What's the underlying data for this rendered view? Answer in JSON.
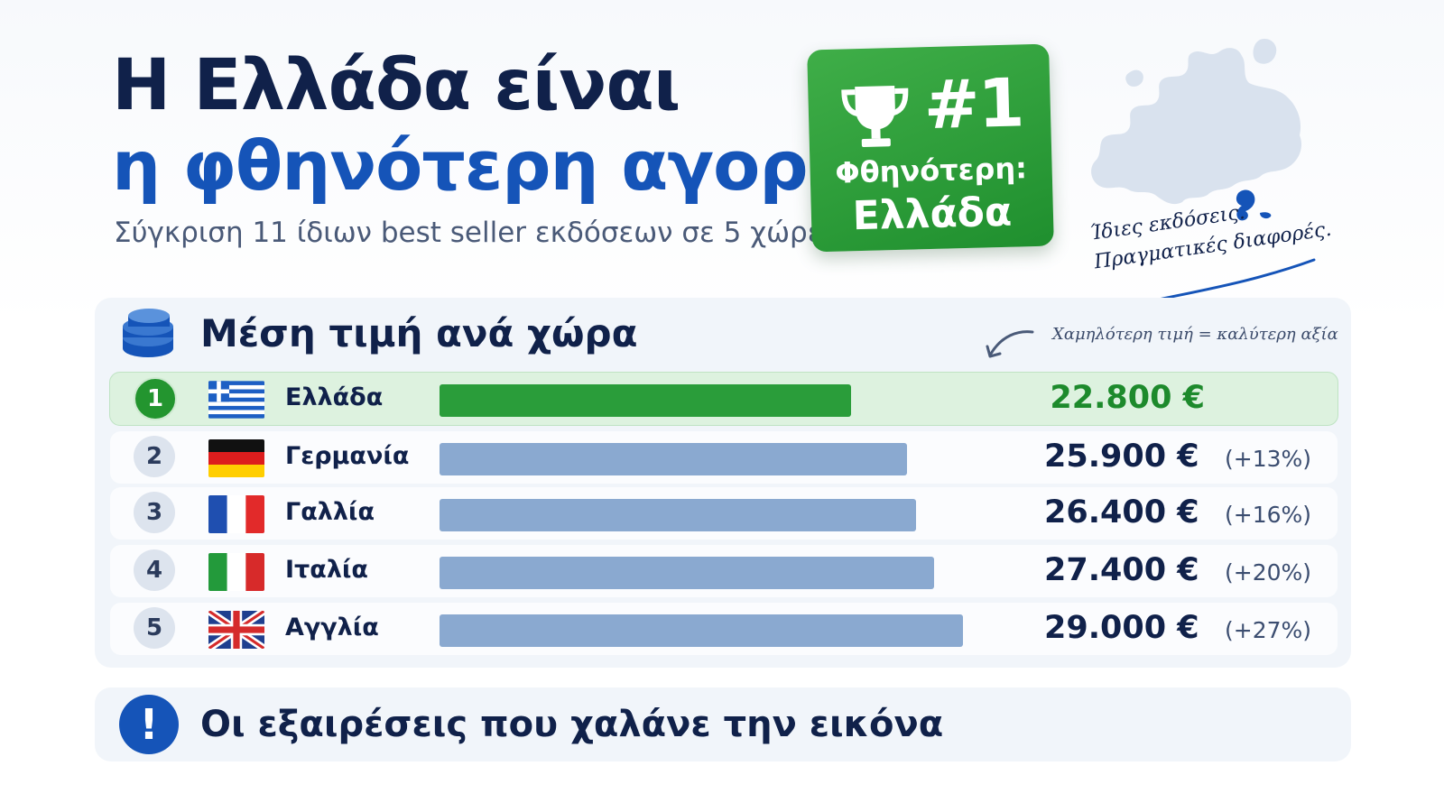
{
  "header": {
    "title_line1": "Η Ελλάδα είναι",
    "title_line2": "η φθηνότερη αγορά",
    "subtitle": "Σύγκριση 11 ίδιων best seller εκδόσεων σε 5 χώρες"
  },
  "badge": {
    "rank": "#1",
    "label_line1": "Φθηνότερη:",
    "label_line2": "Ελλάδα",
    "icon": "trophy-icon",
    "color": "#2a9d3a"
  },
  "tagline": {
    "line1": "Ίδιες εκδόσεις.",
    "line2": "Πραγματικές διαφορές."
  },
  "price_panel": {
    "title": "Μέση τιμή ανά χώρα",
    "icon": "coins-icon",
    "hint": "Χαμηλότερη τιμή = καλύτερη αξία"
  },
  "exceptions_panel": {
    "title": "Οι εξαιρέσεις που χαλάνε την εικόνα",
    "icon": "exclamation-icon"
  },
  "colors": {
    "best_bar": "#2a9d3a",
    "other_bar": "#8aa9d0",
    "title_dark": "#10214a",
    "title_blue": "#1554b8"
  },
  "chart_data": {
    "type": "bar",
    "orientation": "horizontal",
    "title": "Μέση τιμή ανά χώρα",
    "categories": [
      "Ελλάδα",
      "Γερμανία",
      "Γαλλία",
      "Ιταλία",
      "Αγγλία"
    ],
    "values": [
      22800,
      25900,
      26400,
      27400,
      29000
    ],
    "ranks": [
      "1",
      "2",
      "3",
      "4",
      "5"
    ],
    "value_labels": [
      "22.800 €",
      "25.900 €",
      "26.400 €",
      "27.400 €",
      "29.000 €"
    ],
    "diff_labels": [
      "",
      "(+13%)",
      "(+16%)",
      "(+20%)",
      "(+27%)"
    ],
    "flags": [
      "greece-flag",
      "germany-flag",
      "france-flag",
      "italy-flag",
      "uk-flag"
    ],
    "highlight_index": 0,
    "xlim": [
      0,
      32000
    ],
    "grid": false,
    "legend": "none"
  }
}
